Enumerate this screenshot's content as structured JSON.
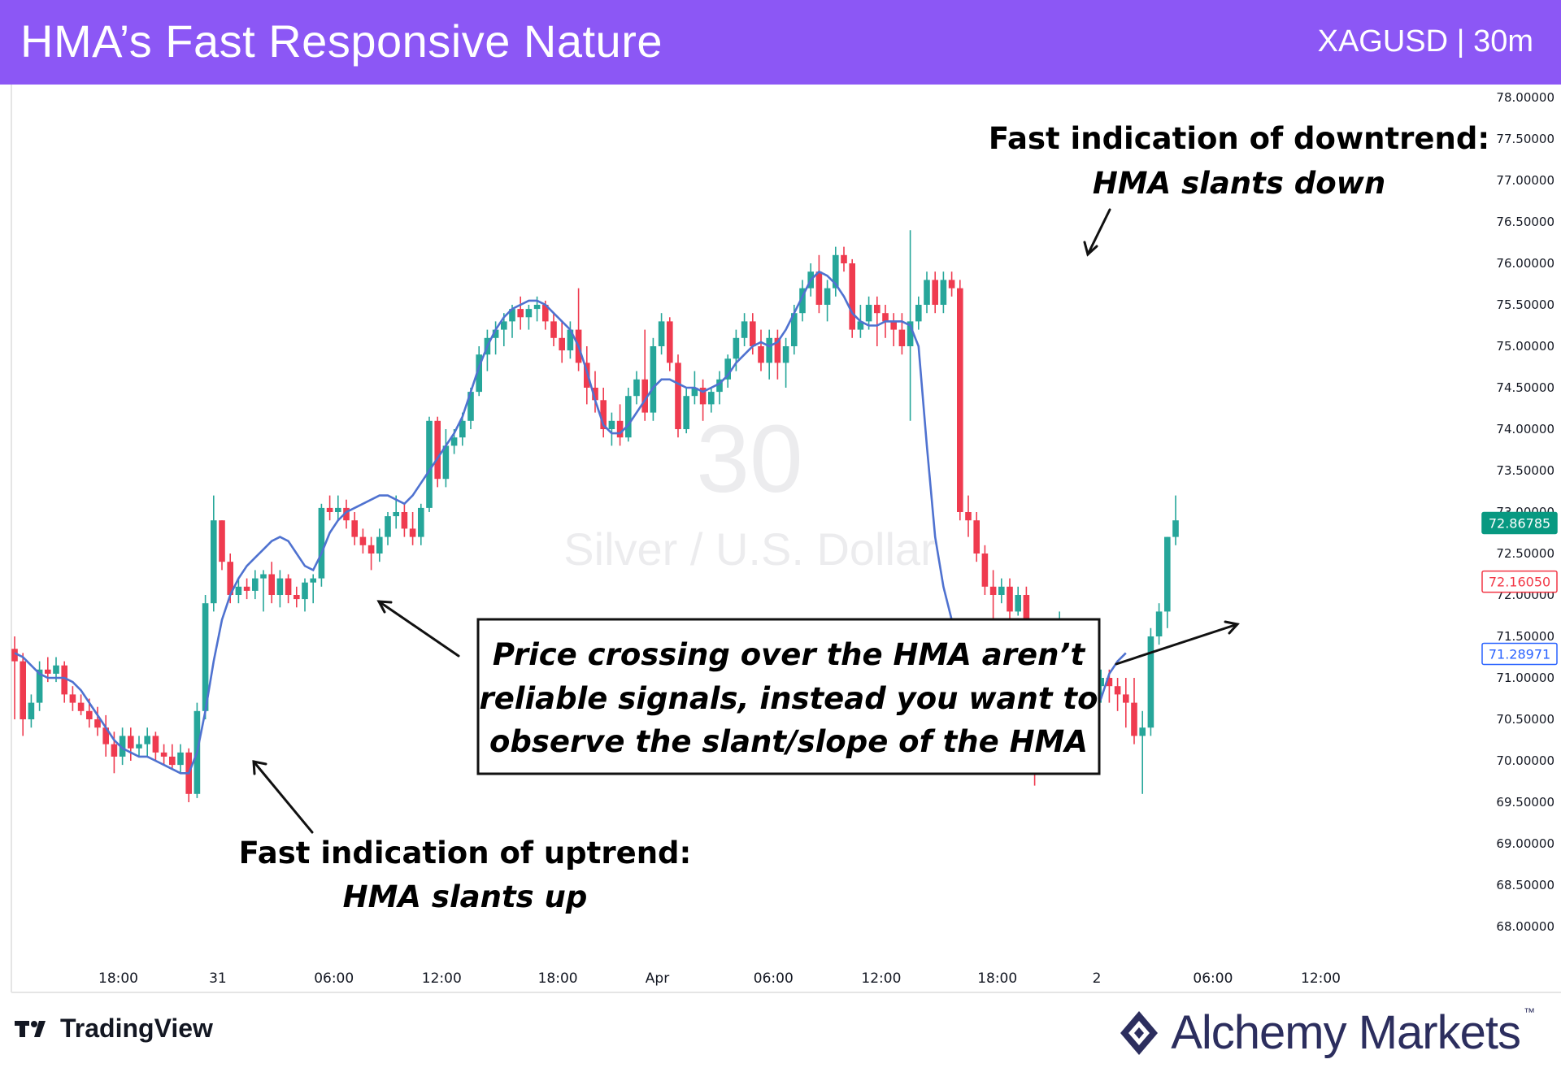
{
  "header": {
    "title": "HMA’s Fast Responsive Nature",
    "symbol": "XAGUSD | 30m"
  },
  "watermark": {
    "interval": "30",
    "name": "Silver / U.S. Dollar"
  },
  "chart_data": {
    "type": "candlestick",
    "ylim": [
      67.8,
      78.1
    ],
    "y_ticks": [
      "78.00000",
      "77.50000",
      "77.00000",
      "76.50000",
      "76.00000",
      "75.50000",
      "75.00000",
      "74.50000",
      "74.00000",
      "73.50000",
      "73.00000",
      "72.50000",
      "72.00000",
      "71.50000",
      "71.00000",
      "70.50000",
      "70.00000",
      "69.50000",
      "69.00000",
      "68.50000",
      "68.00000"
    ],
    "x_ticks": [
      {
        "label": "18:00",
        "bar": 12.5
      },
      {
        "label": "31",
        "bar": 24.5
      },
      {
        "label": "06:00",
        "bar": 38.5
      },
      {
        "label": "12:00",
        "bar": 51.5
      },
      {
        "label": "18:00",
        "bar": 65.5
      },
      {
        "label": "Apr",
        "bar": 77.5
      },
      {
        "label": "06:00",
        "bar": 91.5
      },
      {
        "label": "12:00",
        "bar": 104.5
      },
      {
        "label": "18:00",
        "bar": 118.5
      },
      {
        "label": "2",
        "bar": 130.5
      },
      {
        "label": "06:00",
        "bar": 144.5
      },
      {
        "label": "12:00",
        "bar": 157.5
      }
    ],
    "price_labels": [
      {
        "value": 72.86785,
        "text": "72.86785",
        "color": "#089981",
        "style": "filled"
      },
      {
        "value": 72.1605,
        "text": "72.16050",
        "color": "#f23645",
        "style": "outline"
      },
      {
        "value": 71.28971,
        "text": "71.28971",
        "color": "#2962ff",
        "style": "outline"
      }
    ],
    "candles": [
      [
        71.35,
        71.5,
        70.5,
        71.2
      ],
      [
        71.2,
        71.3,
        70.3,
        70.5
      ],
      [
        70.5,
        70.8,
        70.4,
        70.7
      ],
      [
        70.7,
        71.2,
        70.6,
        71.1
      ],
      [
        71.1,
        71.25,
        70.95,
        71.05
      ],
      [
        71.05,
        71.25,
        70.95,
        71.15
      ],
      [
        71.15,
        71.2,
        70.7,
        70.8
      ],
      [
        70.8,
        70.9,
        70.6,
        70.7
      ],
      [
        70.7,
        70.8,
        70.55,
        70.6
      ],
      [
        70.6,
        70.75,
        70.4,
        70.5
      ],
      [
        70.5,
        70.65,
        70.3,
        70.4
      ],
      [
        70.4,
        70.55,
        70.05,
        70.2
      ],
      [
        70.2,
        70.35,
        69.85,
        70.05
      ],
      [
        70.05,
        70.4,
        69.95,
        70.3
      ],
      [
        70.3,
        70.4,
        70.0,
        70.15
      ],
      [
        70.15,
        70.3,
        70.05,
        70.2
      ],
      [
        70.2,
        70.4,
        70.05,
        70.3
      ],
      [
        70.3,
        70.35,
        70.0,
        70.1
      ],
      [
        70.1,
        70.2,
        69.95,
        70.05
      ],
      [
        70.05,
        70.2,
        69.9,
        69.95
      ],
      [
        69.95,
        70.2,
        69.85,
        70.1
      ],
      [
        70.1,
        70.15,
        69.5,
        69.6
      ],
      [
        69.6,
        70.7,
        69.55,
        70.6
      ],
      [
        70.6,
        72.0,
        70.5,
        71.9
      ],
      [
        71.9,
        73.2,
        71.8,
        72.9
      ],
      [
        72.9,
        72.9,
        72.3,
        72.4
      ],
      [
        72.4,
        72.5,
        71.9,
        72.0
      ],
      [
        72.0,
        72.2,
        71.9,
        72.1
      ],
      [
        72.1,
        72.2,
        71.95,
        72.05
      ],
      [
        72.05,
        72.3,
        71.95,
        72.2
      ],
      [
        72.2,
        72.3,
        71.8,
        72.25
      ],
      [
        72.25,
        72.4,
        71.9,
        72.0
      ],
      [
        72.0,
        72.3,
        71.85,
        72.2
      ],
      [
        72.2,
        72.25,
        71.9,
        72.0
      ],
      [
        72.0,
        72.1,
        71.85,
        71.95
      ],
      [
        71.95,
        72.2,
        71.8,
        72.15
      ],
      [
        72.15,
        72.25,
        71.9,
        72.2
      ],
      [
        72.2,
        73.1,
        72.1,
        73.05
      ],
      [
        73.05,
        73.2,
        72.9,
        73.0
      ],
      [
        73.0,
        73.2,
        72.9,
        73.05
      ],
      [
        73.05,
        73.15,
        72.8,
        72.9
      ],
      [
        72.9,
        73.0,
        72.6,
        72.7
      ],
      [
        72.7,
        72.8,
        72.5,
        72.6
      ],
      [
        72.6,
        72.7,
        72.3,
        72.5
      ],
      [
        72.5,
        72.8,
        72.4,
        72.7
      ],
      [
        72.7,
        73.0,
        72.6,
        72.95
      ],
      [
        72.95,
        73.2,
        72.8,
        73.0
      ],
      [
        73.0,
        73.1,
        72.7,
        72.8
      ],
      [
        72.8,
        73.0,
        72.6,
        72.7
      ],
      [
        72.7,
        73.1,
        72.6,
        73.05
      ],
      [
        73.05,
        74.15,
        73.0,
        74.1
      ],
      [
        74.1,
        74.15,
        73.3,
        73.4
      ],
      [
        73.4,
        74.0,
        73.3,
        73.8
      ],
      [
        73.8,
        74.0,
        73.7,
        73.9
      ],
      [
        73.9,
        74.2,
        73.8,
        74.1
      ],
      [
        74.1,
        74.5,
        74.0,
        74.45
      ],
      [
        74.45,
        75.0,
        74.4,
        74.9
      ],
      [
        74.9,
        75.2,
        74.7,
        75.1
      ],
      [
        75.1,
        75.3,
        74.9,
        75.2
      ],
      [
        75.2,
        75.4,
        75.0,
        75.3
      ],
      [
        75.3,
        75.5,
        75.1,
        75.45
      ],
      [
        75.45,
        75.6,
        75.2,
        75.35
      ],
      [
        75.35,
        75.5,
        75.2,
        75.45
      ],
      [
        75.45,
        75.6,
        75.3,
        75.5
      ],
      [
        75.5,
        75.55,
        75.2,
        75.3
      ],
      [
        75.3,
        75.4,
        75.0,
        75.1
      ],
      [
        75.1,
        75.3,
        74.8,
        74.95
      ],
      [
        74.95,
        75.3,
        74.85,
        75.2
      ],
      [
        75.2,
        75.7,
        74.7,
        74.8
      ],
      [
        74.8,
        75.0,
        74.3,
        74.5
      ],
      [
        74.5,
        74.7,
        74.2,
        74.35
      ],
      [
        74.35,
        74.5,
        73.9,
        74.0
      ],
      [
        74.0,
        74.2,
        73.8,
        74.1
      ],
      [
        74.1,
        74.3,
        73.8,
        73.9
      ],
      [
        73.9,
        74.5,
        73.85,
        74.4
      ],
      [
        74.4,
        74.7,
        74.3,
        74.6
      ],
      [
        74.6,
        75.2,
        74.1,
        74.2
      ],
      [
        74.2,
        75.1,
        74.1,
        75.0
      ],
      [
        75.0,
        75.4,
        74.9,
        75.3
      ],
      [
        75.3,
        75.35,
        74.7,
        74.8
      ],
      [
        74.8,
        74.9,
        73.9,
        74.0
      ],
      [
        74.0,
        74.5,
        73.95,
        74.4
      ],
      [
        74.4,
        74.7,
        74.3,
        74.5
      ],
      [
        74.5,
        74.6,
        74.1,
        74.3
      ],
      [
        74.3,
        74.5,
        74.2,
        74.45
      ],
      [
        74.45,
        74.7,
        74.3,
        74.6
      ],
      [
        74.6,
        74.9,
        74.5,
        74.85
      ],
      [
        74.85,
        75.2,
        74.7,
        75.1
      ],
      [
        75.1,
        75.4,
        75.0,
        75.3
      ],
      [
        75.3,
        75.4,
        74.9,
        75.0
      ],
      [
        75.0,
        75.2,
        74.7,
        74.8
      ],
      [
        74.8,
        75.2,
        74.6,
        75.1
      ],
      [
        75.1,
        75.2,
        74.6,
        74.8
      ],
      [
        74.8,
        75.1,
        74.5,
        75.0
      ],
      [
        75.0,
        75.5,
        74.9,
        75.4
      ],
      [
        75.4,
        75.8,
        75.3,
        75.7
      ],
      [
        75.7,
        76.0,
        75.6,
        75.9
      ],
      [
        75.9,
        76.1,
        75.4,
        75.5
      ],
      [
        75.5,
        75.8,
        75.3,
        75.7
      ],
      [
        75.7,
        76.2,
        75.6,
        76.1
      ],
      [
        76.1,
        76.2,
        75.9,
        76.0
      ],
      [
        76.0,
        76.05,
        75.1,
        75.2
      ],
      [
        75.2,
        75.5,
        75.1,
        75.3
      ],
      [
        75.3,
        75.6,
        75.2,
        75.5
      ],
      [
        75.5,
        75.6,
        75.0,
        75.4
      ],
      [
        75.4,
        75.5,
        75.1,
        75.3
      ],
      [
        75.3,
        75.4,
        75.0,
        75.2
      ],
      [
        75.2,
        75.4,
        74.9,
        75.0
      ],
      [
        75.0,
        76.4,
        74.1,
        75.3
      ],
      [
        75.3,
        75.6,
        75.2,
        75.5
      ],
      [
        75.5,
        75.9,
        75.4,
        75.8
      ],
      [
        75.8,
        75.9,
        75.4,
        75.5
      ],
      [
        75.5,
        75.9,
        75.4,
        75.8
      ],
      [
        75.8,
        75.9,
        75.6,
        75.7
      ],
      [
        75.7,
        75.8,
        72.9,
        73.0
      ],
      [
        73.0,
        73.2,
        72.7,
        72.9
      ],
      [
        72.9,
        73.0,
        72.4,
        72.5
      ],
      [
        72.5,
        72.6,
        72.0,
        72.1
      ],
      [
        72.1,
        72.3,
        71.7,
        72.0
      ],
      [
        72.0,
        72.2,
        71.9,
        72.1
      ],
      [
        72.1,
        72.2,
        71.7,
        71.8
      ],
      [
        71.8,
        72.1,
        71.75,
        72.0
      ],
      [
        72.0,
        72.1,
        70.6,
        70.7
      ],
      [
        70.7,
        70.9,
        69.7,
        70.4
      ],
      [
        70.4,
        70.8,
        70.2,
        70.7
      ],
      [
        70.7,
        71.3,
        70.6,
        71.2
      ],
      [
        71.2,
        71.8,
        71.1,
        71.6
      ],
      [
        71.6,
        71.7,
        71.3,
        71.5
      ],
      [
        71.5,
        71.6,
        71.1,
        71.2
      ],
      [
        71.2,
        71.3,
        71.0,
        71.1
      ],
      [
        71.1,
        71.3,
        70.8,
        70.9
      ],
      [
        70.9,
        71.1,
        70.7,
        71.0
      ],
      [
        71.0,
        71.1,
        70.7,
        70.9
      ],
      [
        70.9,
        71.0,
        70.6,
        70.8
      ],
      [
        70.8,
        71.0,
        70.4,
        70.7
      ],
      [
        70.7,
        71.0,
        70.2,
        70.3
      ],
      [
        70.3,
        70.6,
        69.6,
        70.4
      ],
      [
        70.4,
        71.6,
        70.3,
        71.5
      ],
      [
        71.5,
        71.9,
        71.4,
        71.8
      ],
      [
        71.8,
        72.7,
        71.6,
        72.7
      ],
      [
        72.7,
        73.2,
        72.6,
        72.9
      ]
    ],
    "hma": [
      71.3,
      71.25,
      71.15,
      71.05,
      71.0,
      71.0,
      71.0,
      70.95,
      70.85,
      70.7,
      70.55,
      70.4,
      70.25,
      70.15,
      70.1,
      70.05,
      70.05,
      70.0,
      69.95,
      69.9,
      69.85,
      69.85,
      70.1,
      70.6,
      71.2,
      71.7,
      72.0,
      72.2,
      72.35,
      72.45,
      72.55,
      72.65,
      72.7,
      72.65,
      72.5,
      72.35,
      72.3,
      72.5,
      72.75,
      72.9,
      73.0,
      73.05,
      73.1,
      73.15,
      73.2,
      73.2,
      73.15,
      73.1,
      73.2,
      73.35,
      73.5,
      73.65,
      73.8,
      73.95,
      74.15,
      74.45,
      74.75,
      75.0,
      75.2,
      75.35,
      75.45,
      75.5,
      75.55,
      75.55,
      75.5,
      75.4,
      75.3,
      75.2,
      75.0,
      74.7,
      74.35,
      74.05,
      73.95,
      73.95,
      74.05,
      74.2,
      74.35,
      74.5,
      74.6,
      74.6,
      74.55,
      74.5,
      74.5,
      74.45,
      74.5,
      74.55,
      74.65,
      74.8,
      74.9,
      75.0,
      75.05,
      75.0,
      75.05,
      75.2,
      75.4,
      75.6,
      75.8,
      75.9,
      75.85,
      75.75,
      75.6,
      75.4,
      75.3,
      75.25,
      75.25,
      75.3,
      75.3,
      75.3,
      75.25,
      75.0,
      73.8,
      72.7,
      72.1,
      71.7,
      71.3,
      70.95,
      70.65,
      70.45,
      70.4,
      70.4,
      70.5,
      70.7,
      70.85,
      70.95,
      71.0,
      71.0,
      70.95,
      70.95,
      70.85,
      70.6,
      70.55,
      70.75,
      71.05,
      71.2,
      71.3
    ],
    "annotations": {
      "downtrend_title": "Fast indication of downtrend:",
      "downtrend_sub": "HMA slants down",
      "uptrend_title": "Fast indication of uptrend:",
      "uptrend_sub": "HMA slants up",
      "box_lines": [
        "Price crossing over the HMA aren’t",
        "reliable signals, instead you want to",
        "observe the slant/slope of the HMA"
      ]
    },
    "colors": {
      "up": "#26a69a",
      "down": "#ef3b4f",
      "hma": "#4f72d0",
      "header": "#8c57f5"
    }
  },
  "footer": {
    "tradingview": "TradingView",
    "brand": "Alchemy Markets",
    "tm": "™"
  }
}
